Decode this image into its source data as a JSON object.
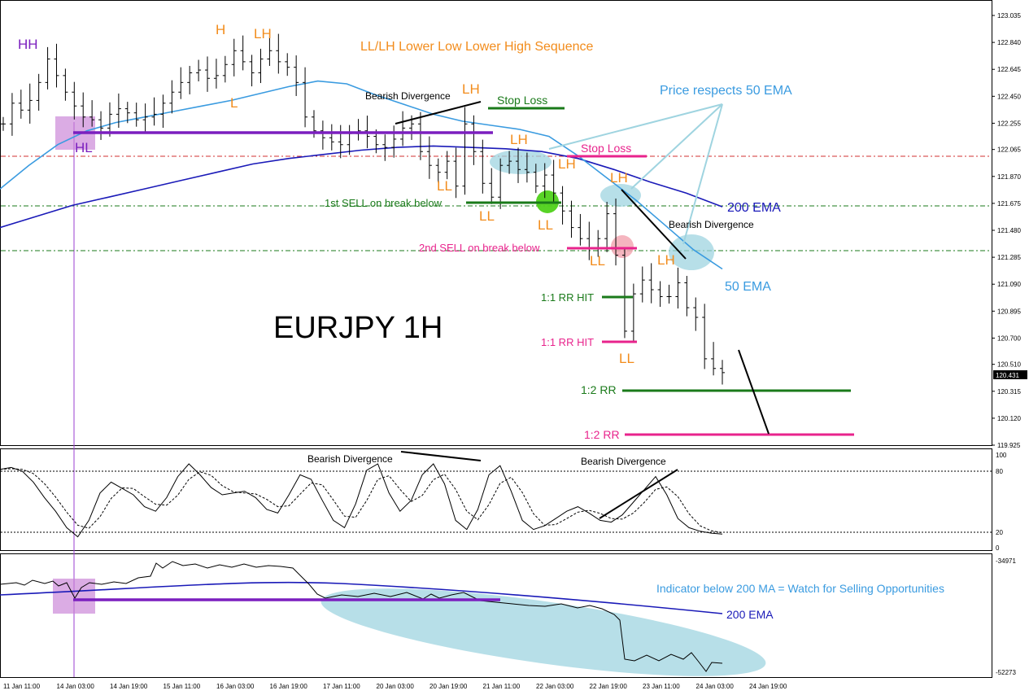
{
  "chart_data": {
    "type": "candlestick-annotated",
    "symbol_label": "EURJPY 1H",
    "price_axis": {
      "min": 119.925,
      "max": 123.035,
      "ticks": [
        "123.035",
        "122.840",
        "122.645",
        "122.450",
        "122.255",
        "122.065",
        "121.870",
        "121.675",
        "121.480",
        "121.285",
        "121.090",
        "120.895",
        "120.700",
        "120.510",
        "120.315",
        "120.120",
        "119.925"
      ],
      "current_price": "120.431"
    },
    "x_labels": [
      "11 Jan 11:00",
      "14 Jan 03:00",
      "14 Jan 19:00",
      "15 Jan 11:00",
      "16 Jan 03:00",
      "16 Jan 19:00",
      "17 Jan 11:00",
      "20 Jan 03:00",
      "20 Jan 19:00",
      "21 Jan 11:00",
      "22 Jan 03:00",
      "22 Jan 19:00",
      "23 Jan 11:00",
      "24 Jan 03:00",
      "24 Jan 19:00"
    ],
    "price_series_close": [
      122.25,
      122.4,
      122.35,
      122.42,
      122.55,
      122.72,
      122.6,
      122.48,
      122.38,
      122.3,
      122.28,
      122.22,
      122.32,
      122.36,
      122.33,
      122.28,
      122.3,
      122.32,
      122.4,
      122.48,
      122.55,
      122.62,
      122.64,
      122.58,
      122.6,
      122.68,
      122.78,
      122.7,
      122.62,
      122.72,
      122.78,
      122.7,
      122.66,
      122.55,
      122.3,
      122.2,
      122.15,
      122.12,
      122.1,
      122.18,
      122.2,
      122.16,
      122.1,
      122.08,
      122.14,
      122.22,
      122.25,
      122.05,
      121.95,
      121.9,
      121.98,
      121.8,
      122.25,
      122.05,
      121.82,
      121.72,
      121.95,
      121.98,
      121.92,
      121.9,
      121.8,
      121.88,
      121.75,
      121.62,
      121.5,
      121.42,
      121.35,
      121.42,
      121.6,
      121.3,
      120.75,
      121.02,
      121.12,
      121.05,
      121.0,
      121.0,
      121.1,
      120.92,
      120.85,
      120.55,
      120.48,
      120.45
    ],
    "ema50": [
      121.78,
      121.95,
      122.1,
      122.2,
      122.26,
      122.3,
      122.34,
      122.38,
      122.42,
      122.47,
      122.52,
      122.56,
      122.54,
      122.46,
      122.39,
      122.32,
      122.27,
      122.24,
      122.21,
      122.16,
      122.02,
      121.86,
      121.7,
      121.52,
      121.34,
      121.2
    ],
    "ema200": [
      121.5,
      121.58,
      121.66,
      121.72,
      121.78,
      121.84,
      121.9,
      121.96,
      122.0,
      122.03,
      122.06,
      122.08,
      122.09,
      122.08,
      122.07,
      122.05,
      122.0,
      121.92,
      121.83,
      121.75,
      121.65
    ],
    "annotations": {
      "HH": "HH",
      "HL": "HL",
      "H": "H",
      "L": "L",
      "LH": "LH",
      "LL": "LL",
      "sequence_title": "LL/LH Lower Low Lower High Sequence",
      "bearish_divergence": "Bearish Divergence",
      "stop_loss": "Stop Loss",
      "price_respects": "Price respects 50 EMA",
      "ema200_label": "200 EMA",
      "ema50_label": "50 EMA",
      "first_sell": "1st SELL on break below",
      "second_sell": "2nd SELL on break below",
      "rr_hit": "1:1 RR HIT",
      "rr_2": "1:2 RR"
    },
    "stochastic": {
      "axis_ticks": [
        "100",
        "80",
        "20",
        "0"
      ],
      "label": "Bearish Divergence",
      "values": [
        86,
        88,
        84,
        72,
        55,
        40,
        22,
        12,
        30,
        60,
        72,
        65,
        58,
        45,
        40,
        55,
        78,
        92,
        80,
        66,
        58,
        60,
        62,
        55,
        42,
        38,
        58,
        80,
        75,
        52,
        30,
        22,
        48,
        85,
        92,
        60,
        40,
        52,
        80,
        92,
        70,
        30,
        20,
        42,
        80,
        90,
        62,
        30,
        20,
        24,
        32,
        40,
        45,
        38,
        30,
        28,
        36,
        50,
        64,
        78,
        58,
        32,
        22,
        18,
        16,
        15
      ]
    },
    "indicator": {
      "axis_ticks": [
        "-34971",
        "-52273"
      ],
      "note": "Indicator below 200 MA = Watch for Selling Opportunities",
      "ema_label": "200 EMA"
    },
    "colors": {
      "orange": "#f28c1c",
      "purple": "#7b1fbf",
      "green": "#1a7a1a",
      "pink": "#e8238c",
      "ema50": "#3a9be0",
      "ema200": "#1a1ab8",
      "cyan": "#9fd4e0",
      "red_dash": "#d03030"
    }
  }
}
